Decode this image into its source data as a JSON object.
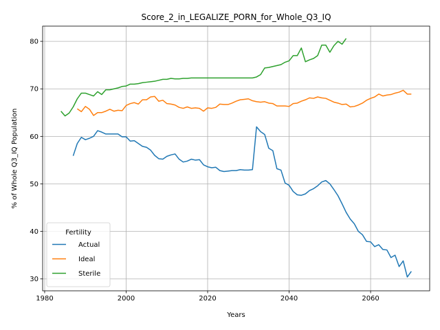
{
  "chart_data": {
    "type": "line",
    "title": "Score_2_in_LEGALIZE_PORN_for_Whole_Q3_IQ",
    "xlabel": "Years",
    "ylabel": "% of Whole Q3_IQ Population",
    "xlim": [
      1979.5,
      2074.5
    ],
    "ylim": [
      27.5,
      83.2
    ],
    "xticks": [
      1980,
      2000,
      2020,
      2040,
      2060
    ],
    "yticks": [
      30,
      40,
      50,
      60,
      70,
      80
    ],
    "grid": true,
    "legend": {
      "title": "Fertility",
      "placement": "lower-left"
    },
    "series": [
      {
        "name": "Actual",
        "color": "#1f77b4",
        "x": [
          1987,
          1988,
          1989,
          1990,
          1991,
          1992,
          1993,
          1994,
          1995,
          1996,
          1997,
          1998,
          1999,
          2000,
          2001,
          2002,
          2003,
          2004,
          2005,
          2006,
          2007,
          2008,
          2009,
          2010,
          2011,
          2012,
          2013,
          2014,
          2015,
          2016,
          2017,
          2018,
          2019,
          2020,
          2021,
          2022,
          2023,
          2024,
          2025,
          2026,
          2027,
          2028,
          2029,
          2030,
          2031,
          2032,
          2033,
          2034,
          2035,
          2036,
          2037,
          2038,
          2039,
          2040,
          2041,
          2042,
          2043,
          2044,
          2045,
          2046,
          2047,
          2048,
          2049,
          2050,
          2051,
          2052,
          2053,
          2054,
          2055,
          2056,
          2057,
          2058,
          2059,
          2060,
          2061,
          2062,
          2063,
          2064,
          2065,
          2066,
          2067,
          2068,
          2069,
          2070
        ],
        "y": [
          55.9,
          58.5,
          59.8,
          59.3,
          59.6,
          60.0,
          61.2,
          60.9,
          60.5,
          60.5,
          60.5,
          60.5,
          59.9,
          59.9,
          59.0,
          59.1,
          58.5,
          57.9,
          57.7,
          57.1,
          56.0,
          55.3,
          55.2,
          55.8,
          56.1,
          56.3,
          55.2,
          54.6,
          54.8,
          55.2,
          55.0,
          55.1,
          54.0,
          53.6,
          53.4,
          53.5,
          52.8,
          52.6,
          52.7,
          52.8,
          52.8,
          53.0,
          52.9,
          52.9,
          53.0,
          62.0,
          61.0,
          60.4,
          57.5,
          57.0,
          53.2,
          52.9,
          50.2,
          49.7,
          48.4,
          47.7,
          47.6,
          47.9,
          48.6,
          49.0,
          49.6,
          50.4,
          50.7,
          50.0,
          48.8,
          47.5,
          45.8,
          44.0,
          42.6,
          41.6,
          40.0,
          39.3,
          37.9,
          37.8,
          36.8,
          37.2,
          36.2,
          36.1,
          34.5,
          35.0,
          32.6,
          33.8,
          30.4,
          31.6
        ]
      },
      {
        "name": "Ideal",
        "color": "#ff7f0e",
        "x": [
          1988,
          1989,
          1990,
          1991,
          1992,
          1993,
          1994,
          1995,
          1996,
          1997,
          1998,
          1999,
          2000,
          2001,
          2002,
          2003,
          2004,
          2005,
          2006,
          2007,
          2008,
          2009,
          2010,
          2011,
          2012,
          2013,
          2014,
          2015,
          2016,
          2017,
          2018,
          2019,
          2020,
          2021,
          2022,
          2023,
          2024,
          2025,
          2026,
          2027,
          2028,
          2029,
          2030,
          2031,
          2032,
          2033,
          2034,
          2035,
          2036,
          2037,
          2038,
          2039,
          2040,
          2041,
          2042,
          2043,
          2044,
          2045,
          2046,
          2047,
          2048,
          2049,
          2050,
          2051,
          2052,
          2053,
          2054,
          2055,
          2056,
          2057,
          2058,
          2059,
          2060,
          2061,
          2062,
          2063,
          2064,
          2065,
          2066,
          2067,
          2068,
          2069,
          2070
        ],
        "y": [
          65.8,
          65.2,
          66.3,
          65.7,
          64.4,
          65.0,
          65.0,
          65.3,
          65.7,
          65.3,
          65.5,
          65.4,
          66.5,
          66.9,
          67.1,
          66.8,
          67.7,
          67.7,
          68.3,
          68.4,
          67.4,
          67.6,
          66.9,
          66.8,
          66.6,
          66.1,
          65.9,
          66.2,
          65.9,
          66.0,
          65.9,
          65.3,
          66.0,
          65.9,
          66.1,
          66.8,
          66.7,
          66.7,
          67.0,
          67.4,
          67.7,
          67.8,
          67.9,
          67.5,
          67.3,
          67.2,
          67.3,
          67.0,
          66.9,
          66.4,
          66.4,
          66.4,
          66.3,
          66.9,
          67.0,
          67.4,
          67.7,
          68.1,
          68.0,
          68.3,
          68.1,
          68.0,
          67.6,
          67.2,
          67.0,
          66.7,
          66.8,
          66.2,
          66.3,
          66.6,
          67.0,
          67.6,
          68.0,
          68.3,
          68.9,
          68.5,
          68.7,
          68.8,
          69.1,
          69.3,
          69.7,
          68.9,
          68.9
        ]
      },
      {
        "name": "Sterile",
        "color": "#2ca02c",
        "x": [
          1984,
          1985,
          1986,
          1987,
          1988,
          1989,
          1990,
          1991,
          1992,
          1993,
          1994,
          1995,
          1996,
          1997,
          1998,
          1999,
          2000,
          2001,
          2002,
          2003,
          2004,
          2005,
          2006,
          2007,
          2008,
          2009,
          2010,
          2011,
          2012,
          2013,
          2014,
          2015,
          2016,
          2017,
          2018,
          2019,
          2020,
          2021,
          2022,
          2023,
          2024,
          2025,
          2026,
          2027,
          2028,
          2029,
          2030,
          2031,
          2032,
          2033,
          2034,
          2035,
          2036,
          2037,
          2038,
          2039,
          2040,
          2041,
          2042,
          2043,
          2044,
          2045,
          2046,
          2047,
          2048,
          2049,
          2050,
          2051,
          2052,
          2053,
          2054
        ],
        "y": [
          65.3,
          64.3,
          64.9,
          66.2,
          67.9,
          69.1,
          69.1,
          68.8,
          68.5,
          69.4,
          68.8,
          69.8,
          69.8,
          70.0,
          70.2,
          70.5,
          70.6,
          71.0,
          71.0,
          71.1,
          71.3,
          71.4,
          71.5,
          71.6,
          71.8,
          72.0,
          72.0,
          72.2,
          72.1,
          72.1,
          72.2,
          72.2,
          72.3,
          72.3,
          72.3,
          72.3,
          72.3,
          72.3,
          72.3,
          72.3,
          72.3,
          72.3,
          72.3,
          72.3,
          72.3,
          72.3,
          72.3,
          72.3,
          72.5,
          73.0,
          74.4,
          74.5,
          74.7,
          74.9,
          75.1,
          75.6,
          75.9,
          77.0,
          77.0,
          78.6,
          75.7,
          76.1,
          76.4,
          77.0,
          79.2,
          79.2,
          77.7,
          79.1,
          80.0,
          79.4,
          80.6
        ]
      }
    ]
  }
}
